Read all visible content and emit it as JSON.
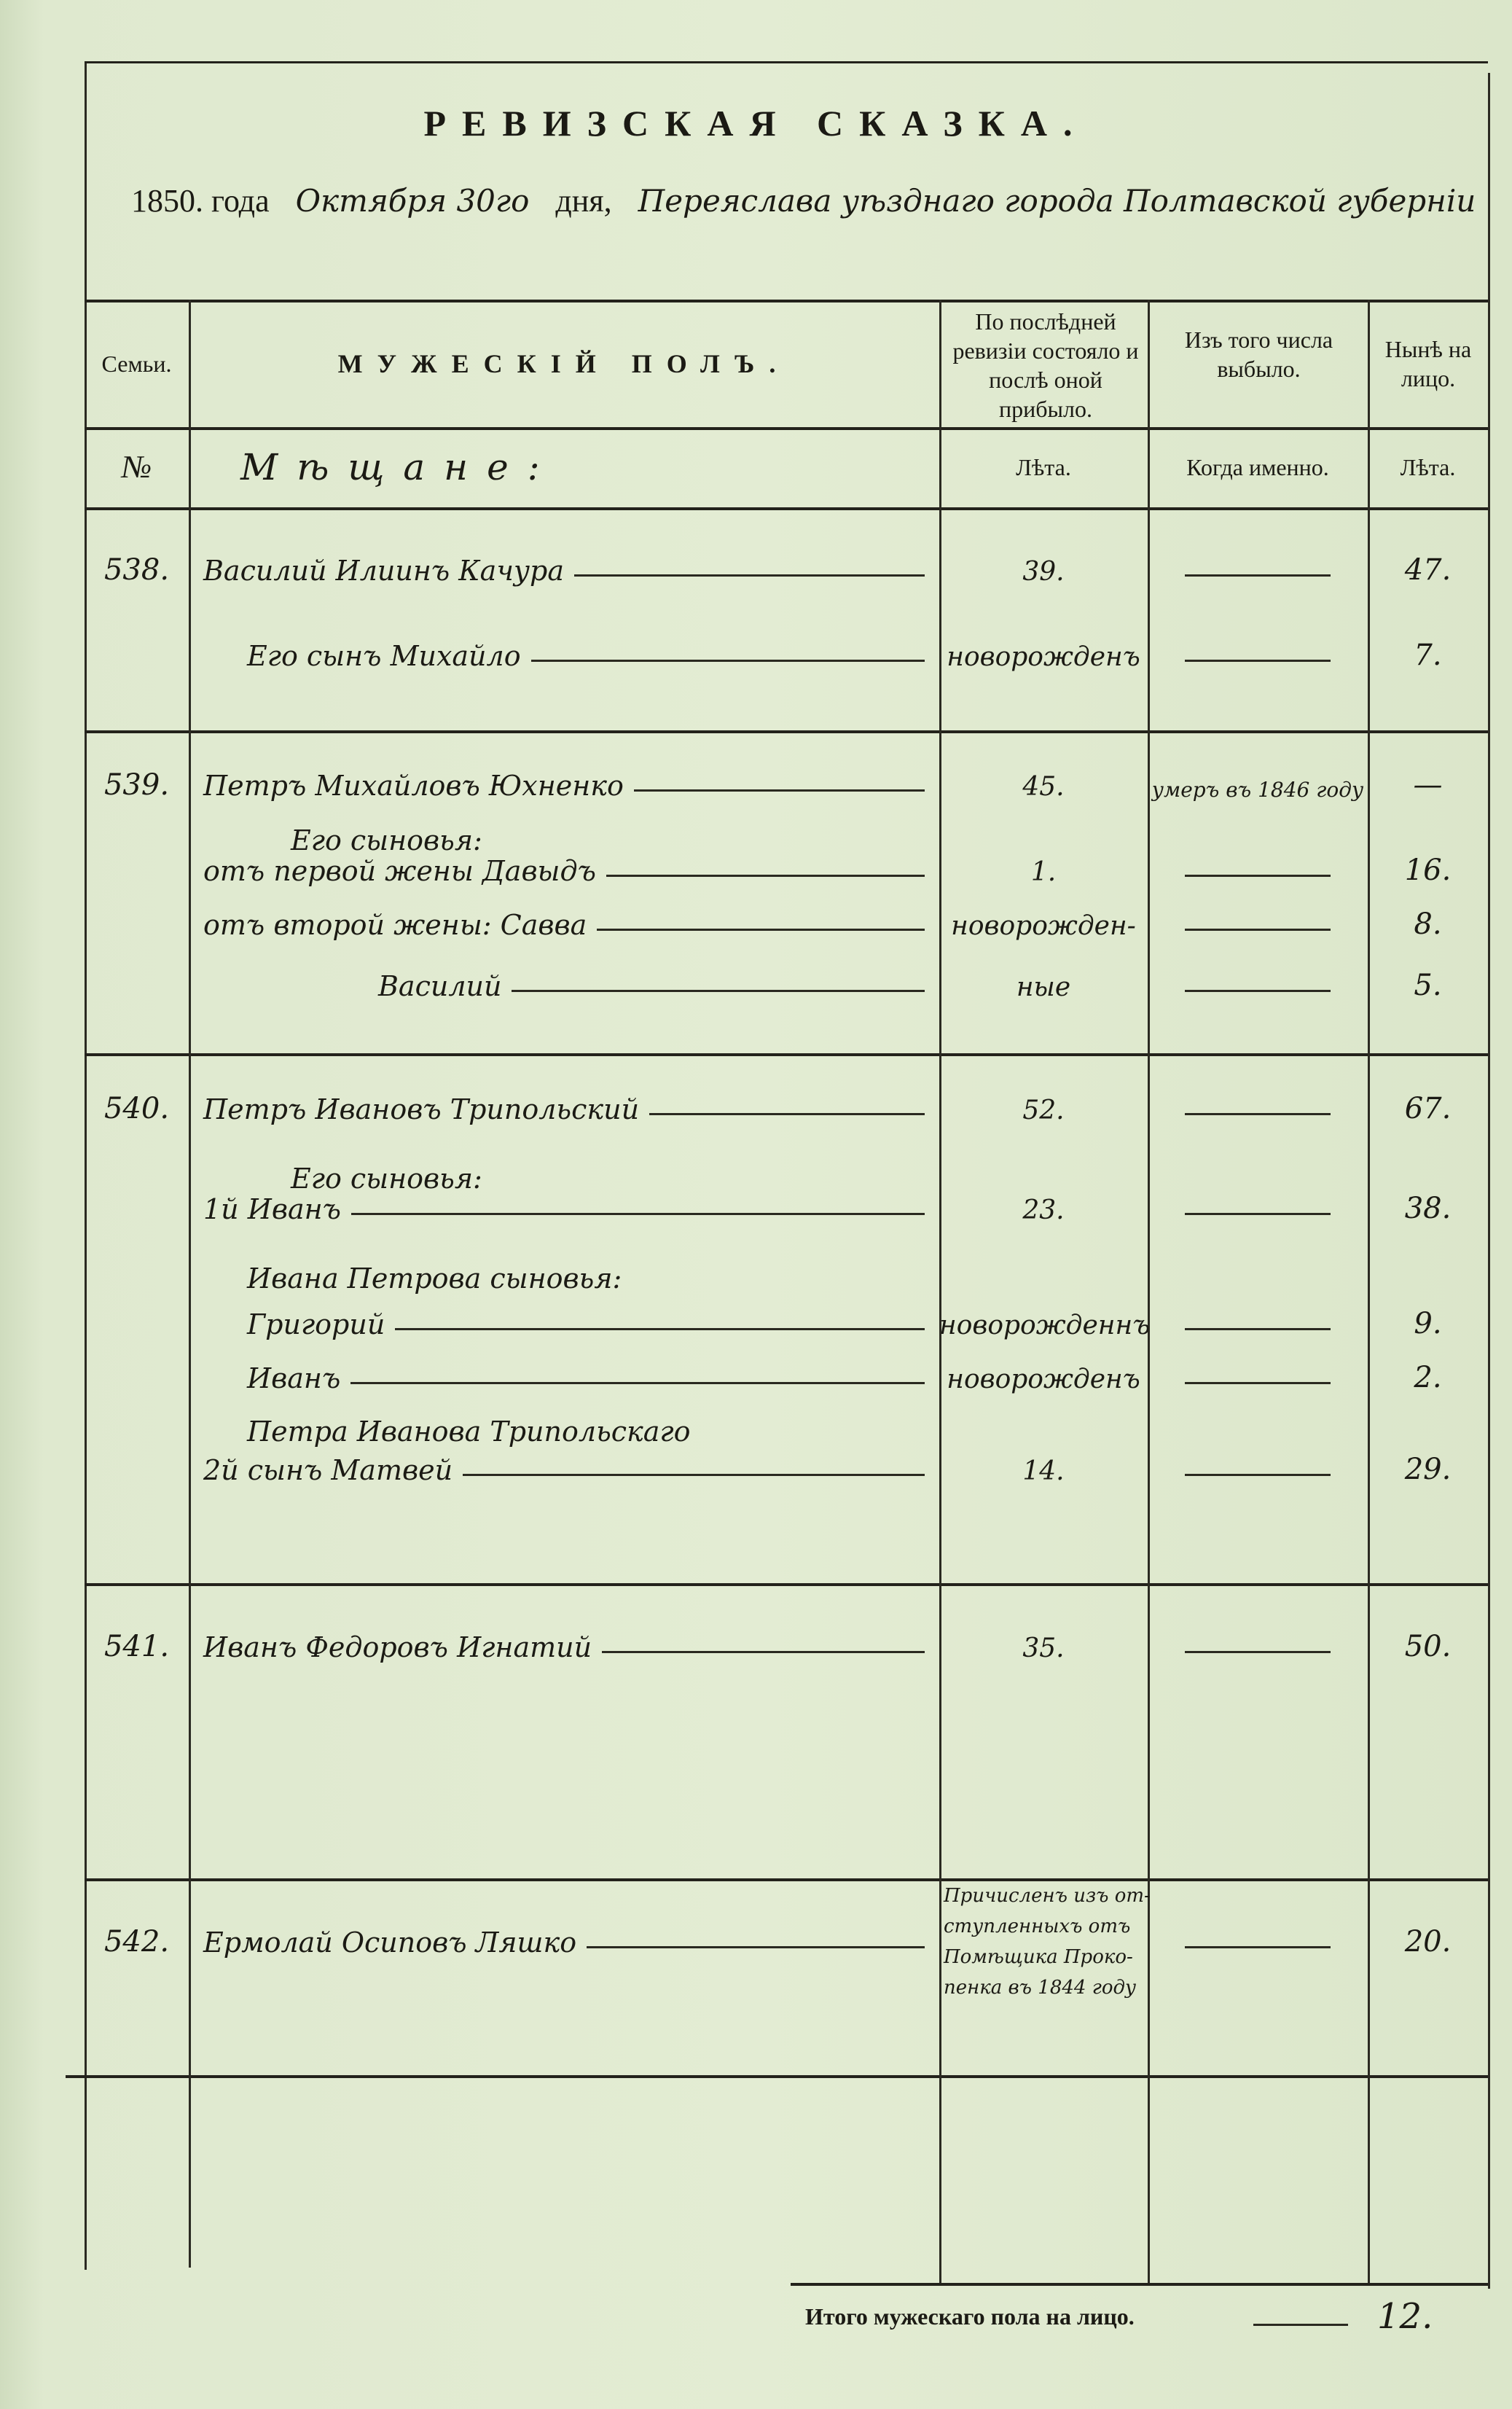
{
  "title": "РЕВИЗСКАЯ СКАЗКА.",
  "subtitle": {
    "year": "1850. года",
    "date": "Октября 30го",
    "day_label": "дня,",
    "place": "Переяслава уѣзднаго города Полтавской губерніи"
  },
  "header": {
    "families": "Семьи.",
    "male": "МУЖЕСКІЙ ПОЛЪ.",
    "last_revision": "По послѣдней ревизіи состояло и послѣ оной прибыло.",
    "departed": "Изъ того числа выбыло.",
    "present": "Нынѣ на лицо."
  },
  "subheader": {
    "number": "№",
    "estate": "Мѣщане:",
    "years1": "Лѣта.",
    "when": "Когда именно.",
    "years2": "Лѣта."
  },
  "families": [
    {
      "number": "538.",
      "entries": [
        {
          "name": "Василий Илиинъ Качура",
          "age": "39.",
          "departed": "",
          "now": "47."
        },
        {
          "name": "Его сынъ Михайло",
          "indent": 1,
          "age": "новорожденъ",
          "departed": "",
          "now": "7."
        }
      ]
    },
    {
      "number": "539.",
      "entries": [
        {
          "name": "Петръ Михайловъ Юхненко",
          "age": "45.",
          "departed": "умеръ въ 1846 году",
          "now": "—"
        },
        {
          "label": "Его сыновья:",
          "indent": 2
        },
        {
          "name": "отъ первой жены Давыдъ",
          "age": "1.",
          "departed": "",
          "now": "16."
        },
        {
          "name": "отъ второй жены: Савва",
          "age": "новорожден-",
          "departed": "",
          "now": "8."
        },
        {
          "name": "Василий",
          "indent": 4,
          "age": "ные",
          "departed": "",
          "now": "5."
        }
      ]
    },
    {
      "number": "540.",
      "entries": [
        {
          "name": "Петръ Ивановъ Трипольский",
          "age": "52.",
          "departed": "",
          "now": "67."
        },
        {
          "label": "Его сыновья:",
          "indent": 2
        },
        {
          "name": "1й Иванъ",
          "age": "23.",
          "departed": "",
          "now": "38."
        },
        {
          "label": "Ивана Петрова сыновья:",
          "indent": 1
        },
        {
          "name": "Григорий",
          "indent": 1,
          "age": "новорожденнъ",
          "departed": "",
          "now": "9."
        },
        {
          "name": "Иванъ",
          "indent": 1,
          "age": "новорожденъ",
          "departed": "",
          "now": "2."
        },
        {
          "label": "Петра Иванова Трипольскаго",
          "indent": 1
        },
        {
          "name": "2й сынъ Матвей",
          "age": "14.",
          "departed": "",
          "now": "29."
        }
      ]
    },
    {
      "number": "541.",
      "entries": [
        {
          "name": "Иванъ Федоровъ Игнатий",
          "age": "35.",
          "departed": "",
          "now": "50."
        }
      ]
    },
    {
      "number": "542.",
      "entries": [
        {
          "name": "Ермолай Осиповъ Ляшко",
          "age": "",
          "departed": "",
          "now": "20.",
          "note": [
            "Причисленъ изъ от-",
            "ступленныхъ отъ",
            "Помѣщика Проко-",
            "пенка въ 1844 году"
          ]
        }
      ]
    }
  ],
  "total": {
    "label": "Итого мужескаго пола на лицо.",
    "value": "12."
  },
  "colors": {
    "paper": "#dfe9cf",
    "ink": "#1b1a14"
  }
}
